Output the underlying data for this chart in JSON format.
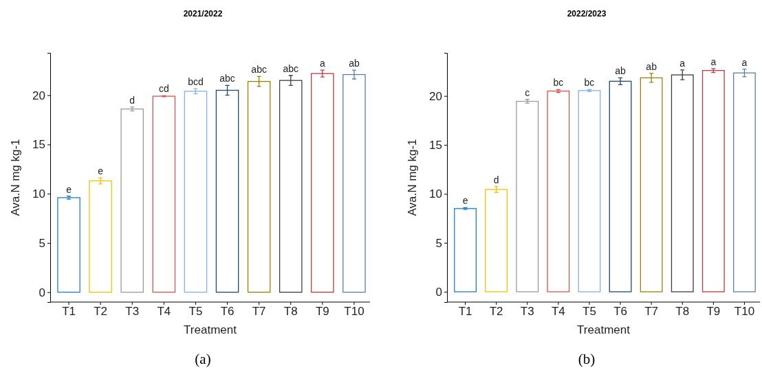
{
  "chart_data": [
    {
      "type": "bar",
      "title": "2021/2022",
      "xlabel": "Treatment",
      "ylabel": "Ava.N  mg kg-1",
      "categories": [
        "T1",
        "T2",
        "T3",
        "T4",
        "T5",
        "T6",
        "T7",
        "T8",
        "T9",
        "T10"
      ],
      "values": [
        9.6,
        11.3,
        18.6,
        19.9,
        20.4,
        20.5,
        21.4,
        21.5,
        22.2,
        22.1
      ],
      "errors": [
        0.15,
        0.3,
        0.2,
        0.05,
        0.25,
        0.5,
        0.5,
        0.5,
        0.35,
        0.45
      ],
      "colors": [
        "#1f7fcc",
        "#f2c200",
        "#9a9a9a",
        "#d9534f",
        "#86aee8",
        "#1c4a70",
        "#9a8000",
        "#3d3d3d",
        "#c0393f",
        "#5d7ea8"
      ],
      "value_labels": [
        "e",
        "e",
        "d",
        "cd",
        "bcd",
        "abc",
        "abc",
        "abc",
        "a",
        "ab"
      ],
      "ylim": [
        -1.0,
        24.3
      ],
      "yticks": [
        0,
        5,
        10,
        15,
        20
      ],
      "annotations": [
        "(a)"
      ]
    },
    {
      "type": "bar",
      "title": "2022/2023",
      "xlabel": "Treatment",
      "ylabel": "Ava.N  mg kg-1",
      "categories": [
        "T1",
        "T2",
        "T3",
        "T4",
        "T5",
        "T6",
        "T7",
        "T8",
        "T9",
        "T10"
      ],
      "values": [
        8.5,
        10.45,
        19.45,
        20.5,
        20.55,
        21.5,
        21.85,
        22.15,
        22.6,
        22.35
      ],
      "errors": [
        0.1,
        0.3,
        0.2,
        0.15,
        0.1,
        0.35,
        0.45,
        0.5,
        0.2,
        0.4
      ],
      "colors": [
        "#1f7fcc",
        "#f2c200",
        "#9a9a9a",
        "#d9534f",
        "#86aee8",
        "#1c4a70",
        "#9a8000",
        "#3d3d3d",
        "#c0393f",
        "#5d7ea8"
      ],
      "value_labels": [
        "e",
        "d",
        "c",
        "bc",
        "bc",
        "ab",
        "ab",
        "a",
        "a",
        "a"
      ],
      "ylim": [
        -1.05,
        24.4
      ],
      "yticks": [
        0,
        5,
        10,
        15,
        20
      ],
      "annotations": [
        "(b)"
      ]
    }
  ]
}
